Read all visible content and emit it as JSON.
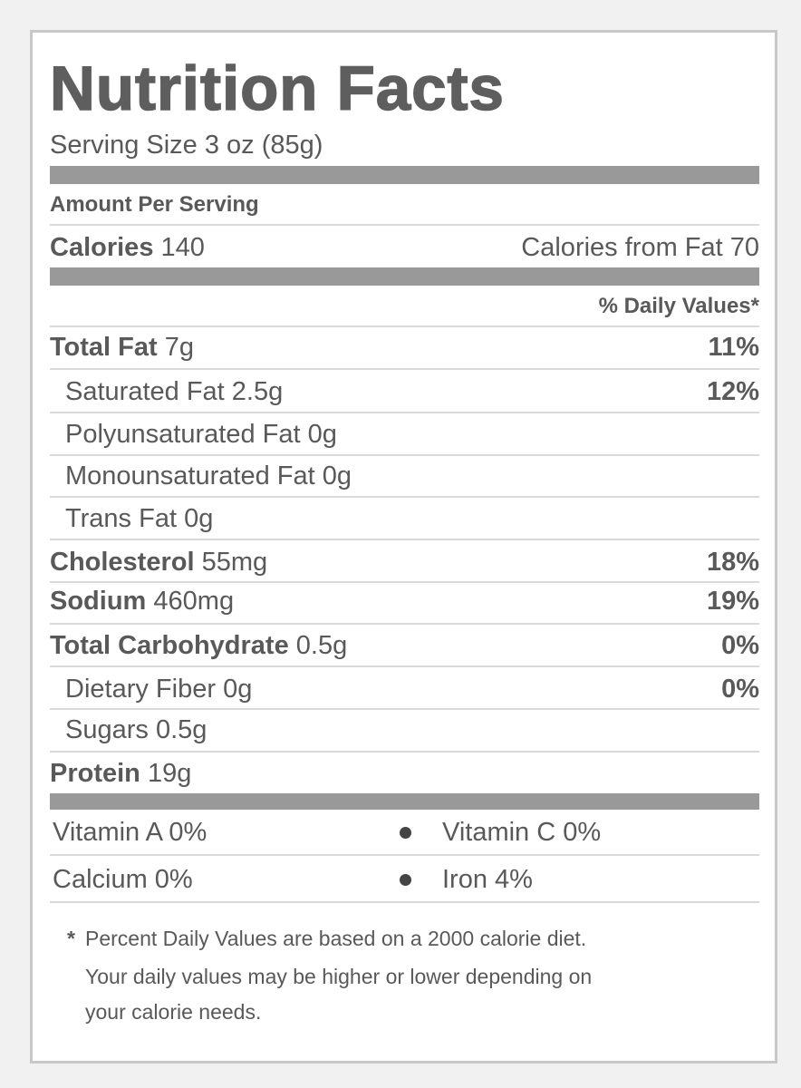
{
  "header": {
    "title": "Nutrition Facts",
    "serving_size": "Serving Size 3 oz (85g)"
  },
  "amount_per_serving": "Amount Per Serving",
  "calories": {
    "label": "Calories",
    "value": "140",
    "from_fat": "Calories from Fat 70"
  },
  "daily_values_header": "% Daily Values*",
  "nutrients": [
    {
      "name": "Total Fat",
      "amount": "7g",
      "dv": "11%"
    },
    {
      "name": "Saturated Fat",
      "amount": "2.5g",
      "dv": "12%"
    },
    {
      "name": "Polyunsaturated Fat",
      "amount": "0g"
    },
    {
      "name": "Monounsaturated Fat",
      "amount": "0g"
    },
    {
      "name": "Trans Fat",
      "amount": "0g"
    },
    {
      "name": "Cholesterol",
      "amount": "55mg",
      "dv": "18%"
    },
    {
      "name": "Sodium",
      "amount": "460mg",
      "dv": "19%"
    },
    {
      "name": "Total Carbohydrate",
      "amount": "0.5g",
      "dv": "0%"
    },
    {
      "name": "Dietary Fiber",
      "amount": "0g",
      "dv": "0%"
    },
    {
      "name": "Sugars",
      "amount": "0.5g"
    },
    {
      "name": "Protein",
      "amount": "19g"
    }
  ],
  "vitamins": [
    [
      "Vitamin A 0%",
      "Vitamin C 0%"
    ],
    [
      "Calcium 0%",
      "Iron 4%"
    ]
  ],
  "footnote": {
    "mark": "*",
    "lines": [
      "Percent Daily Values are based on a 2000 calorie diet.",
      "Your daily values may be higher or lower depending on",
      "your calorie needs."
    ]
  }
}
